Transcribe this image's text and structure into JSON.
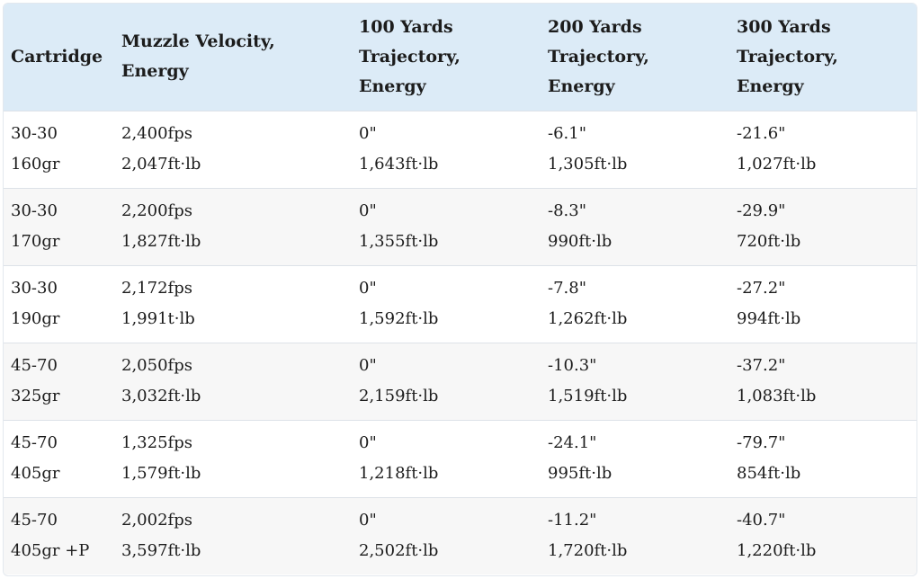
{
  "header": {
    "cartridge": [
      "Cartridge"
    ],
    "muzzle": [
      "Muzzle Velocity,",
      "Energy"
    ],
    "y100": [
      "100 Yards",
      "Trajectory,",
      "Energy"
    ],
    "y200": [
      "200 Yards",
      "Trajectory,",
      "Energy"
    ],
    "y300": [
      "300 Yards",
      "Trajectory,",
      "Energy"
    ]
  },
  "rows": [
    {
      "cartridge": [
        "30-30",
        "160gr"
      ],
      "muzzle": [
        "2,400fps",
        "2,047ft·lb"
      ],
      "y100": [
        "0\"",
        "1,643ft·lb"
      ],
      "y200": [
        "-6.1\"",
        "1,305ft·lb"
      ],
      "y300": [
        "-21.6\"",
        "1,027ft·lb"
      ]
    },
    {
      "cartridge": [
        "30-30",
        "170gr"
      ],
      "muzzle": [
        "2,200fps",
        "1,827ft·lb"
      ],
      "y100": [
        "0\"",
        "1,355ft·lb"
      ],
      "y200": [
        "-8.3\"",
        "990ft·lb"
      ],
      "y300": [
        "-29.9\"",
        "720ft·lb"
      ]
    },
    {
      "cartridge": [
        "30-30",
        "190gr"
      ],
      "muzzle": [
        "2,172fps",
        "1,991t·lb"
      ],
      "y100": [
        "0\"",
        "1,592ft·lb"
      ],
      "y200": [
        "-7.8\"",
        "1,262ft·lb"
      ],
      "y300": [
        "-27.2\"",
        "994ft·lb"
      ]
    },
    {
      "cartridge": [
        "45-70",
        "325gr"
      ],
      "muzzle": [
        "2,050fps",
        "3,032ft·lb"
      ],
      "y100": [
        "0\"",
        "2,159ft·lb"
      ],
      "y200": [
        "-10.3\"",
        "1,519ft·lb"
      ],
      "y300": [
        "-37.2\"",
        "1,083ft·lb"
      ]
    },
    {
      "cartridge": [
        "45-70",
        "405gr"
      ],
      "muzzle": [
        "1,325fps",
        "1,579ft·lb"
      ],
      "y100": [
        "0\"",
        "1,218ft·lb"
      ],
      "y200": [
        "-24.1\"",
        "995ft·lb"
      ],
      "y300": [
        "-79.7\"",
        "854ft·lb"
      ]
    },
    {
      "cartridge": [
        "45-70",
        "405gr +P"
      ],
      "muzzle": [
        "2,002fps",
        "3,597ft·lb"
      ],
      "y100": [
        "0\"",
        "2,502ft·lb"
      ],
      "y200": [
        "-11.2\"",
        "1,720ft·lb"
      ],
      "y300": [
        "-40.7\"",
        "1,220ft·lb"
      ]
    }
  ],
  "colors": {
    "header_bg": "#dcebf7",
    "alt_row_bg": "#f7f7f7",
    "border": "#dde2e8"
  }
}
